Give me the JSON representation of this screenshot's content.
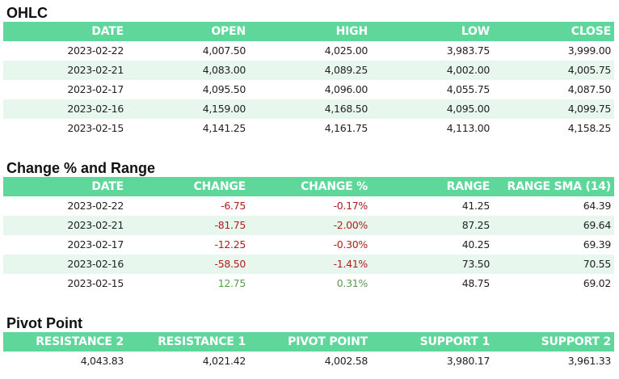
{
  "ohlc": {
    "title": "OHLC",
    "headers": [
      "DATE",
      "OPEN",
      "HIGH",
      "LOW",
      "CLOSE"
    ],
    "rows": [
      [
        "2023-02-22",
        "4,007.50",
        "4,025.00",
        "3,983.75",
        "3,999.00"
      ],
      [
        "2023-02-21",
        "4,083.00",
        "4,089.25",
        "4,002.00",
        "4,005.75"
      ],
      [
        "2023-02-17",
        "4,095.50",
        "4,096.00",
        "4,055.75",
        "4,087.50"
      ],
      [
        "2023-02-16",
        "4,159.00",
        "4,168.50",
        "4,095.00",
        "4,099.75"
      ],
      [
        "2023-02-15",
        "4,141.25",
        "4,161.75",
        "4,113.00",
        "4,158.25"
      ]
    ]
  },
  "change_range": {
    "title": "Change % and Range",
    "headers": [
      "DATE",
      "CHANGE",
      "CHANGE %",
      "RANGE",
      "RANGE SMA (14)"
    ],
    "rows": [
      [
        "2023-02-22",
        "-6.75",
        "-0.17%",
        "41.25",
        "64.39"
      ],
      [
        "2023-02-21",
        "-81.75",
        "-2.00%",
        "87.25",
        "69.64"
      ],
      [
        "2023-02-17",
        "-12.25",
        "-0.30%",
        "40.25",
        "69.39"
      ],
      [
        "2023-02-16",
        "-58.50",
        "-1.41%",
        "73.50",
        "70.55"
      ],
      [
        "2023-02-15",
        "12.75",
        "0.31%",
        "48.75",
        "69.02"
      ]
    ]
  },
  "pivot": {
    "title": "Pivot Point",
    "headers": [
      "RESISTANCE 2",
      "RESISTANCE 1",
      "PIVOT POINT",
      "SUPPORT 1",
      "SUPPORT 2"
    ],
    "rows": [
      [
        "4,043.83",
        "4,021.42",
        "4,002.58",
        "3,980.17",
        "3,961.33"
      ]
    ]
  },
  "colors": {
    "header_bg": "#5fd69a",
    "alt_row_bg": "#e8f7ee",
    "negative": "#b11c1c",
    "positive": "#5a9e4f"
  }
}
